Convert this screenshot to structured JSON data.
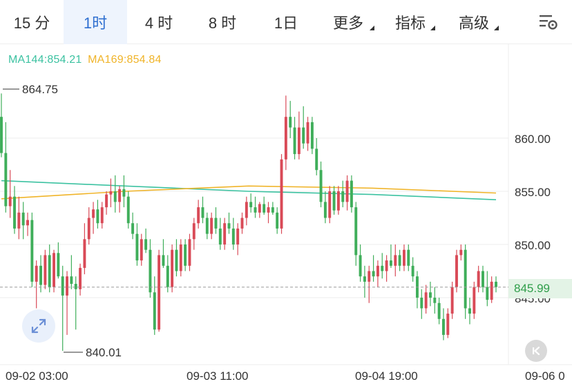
{
  "tabs": [
    {
      "label": "15 分",
      "active": false,
      "dropdown": false
    },
    {
      "label": "1时",
      "active": true,
      "dropdown": false
    },
    {
      "label": "4 时",
      "active": false,
      "dropdown": false
    },
    {
      "label": "8 时",
      "active": false,
      "dropdown": false
    },
    {
      "label": "1日",
      "active": false,
      "dropdown": false
    },
    {
      "label": "更多",
      "active": false,
      "dropdown": true
    },
    {
      "label": "指标",
      "active": false,
      "dropdown": true
    },
    {
      "label": "高级",
      "active": false,
      "dropdown": true
    }
  ],
  "settings_icon": "chart-settings-icon",
  "ma_legend": {
    "ma144": {
      "label": "MA144:854.21",
      "color": "#3cc2a1"
    },
    "ma169": {
      "label": "MA169:854.84",
      "color": "#f0b429"
    }
  },
  "current_price": {
    "label": "845.99",
    "value": 845.99
  },
  "chart_data": {
    "type": "candlestick",
    "y_axis_labels": [
      "860.00",
      "855.00",
      "850.00",
      "845.00"
    ],
    "y_ticks": [
      860,
      855,
      850,
      845
    ],
    "x_axis_labels": [
      "09-02 03:00",
      "09-03 11:00",
      "09-04 19:00",
      "09-06 0"
    ],
    "high_label": "864.75",
    "low_label": "840.01",
    "colors": {
      "up": "#d94a57",
      "down": "#3fae5a",
      "ma144": "#3cc2a1",
      "ma169": "#f0b429"
    },
    "candles": [
      [
        862.0,
        864.2,
        858.2,
        858.6
      ],
      [
        858.6,
        861.5,
        853.0,
        853.6
      ],
      [
        853.6,
        857.0,
        852.5,
        854.5
      ],
      [
        854.5,
        855.5,
        851.0,
        851.5
      ],
      [
        851.5,
        854.5,
        850.5,
        853.0
      ],
      [
        853.0,
        854.0,
        850.5,
        851.8
      ],
      [
        851.8,
        853.0,
        850.8,
        852.3
      ],
      [
        852.3,
        853.0,
        846.0,
        846.5
      ],
      [
        846.5,
        848.5,
        844.0,
        848.0
      ],
      [
        848.0,
        849.0,
        845.5,
        846.2
      ],
      [
        846.2,
        849.5,
        845.8,
        849.0
      ],
      [
        849.0,
        850.0,
        845.5,
        846.0
      ],
      [
        846.0,
        849.5,
        845.5,
        849.2
      ],
      [
        849.2,
        850.2,
        846.8,
        847.0
      ],
      [
        847.0,
        848.0,
        840.0,
        845.2
      ],
      [
        845.2,
        847.5,
        841.5,
        847.0
      ],
      [
        847.0,
        849.0,
        845.8,
        846.3
      ],
      [
        846.3,
        847.0,
        842.0,
        845.8
      ],
      [
        845.8,
        848.2,
        845.2,
        847.8
      ],
      [
        847.8,
        852.0,
        847.2,
        850.5
      ],
      [
        850.5,
        853.5,
        850.0,
        852.5
      ],
      [
        852.5,
        854.0,
        851.0,
        853.3
      ],
      [
        853.3,
        854.2,
        851.5,
        852.0
      ],
      [
        852.0,
        854.0,
        851.5,
        853.5
      ],
      [
        853.5,
        855.0,
        852.8,
        854.7
      ],
      [
        854.7,
        856.2,
        853.5,
        855.0
      ],
      [
        855.0,
        856.5,
        853.0,
        854.0
      ],
      [
        854.0,
        855.5,
        853.0,
        855.2
      ],
      [
        855.2,
        856.5,
        853.5,
        854.5
      ],
      [
        854.5,
        855.0,
        851.5,
        852.0
      ],
      [
        852.0,
        853.0,
        850.5,
        851.0
      ],
      [
        851.0,
        852.0,
        848.0,
        848.5
      ],
      [
        848.5,
        851.0,
        848.0,
        850.5
      ],
      [
        850.5,
        851.5,
        849.2,
        849.5
      ],
      [
        849.5,
        850.5,
        845.0,
        845.5
      ],
      [
        845.5,
        847.0,
        841.5,
        842.0
      ],
      [
        842.0,
        849.5,
        841.8,
        849.0
      ],
      [
        849.0,
        850.5,
        847.8,
        848.0
      ],
      [
        848.0,
        849.0,
        845.5,
        846.0
      ],
      [
        846.0,
        850.0,
        845.5,
        849.5
      ],
      [
        849.5,
        850.5,
        847.0,
        847.5
      ],
      [
        847.5,
        850.5,
        847.0,
        850.0
      ],
      [
        850.0,
        850.5,
        847.5,
        848.0
      ],
      [
        848.0,
        851.0,
        847.5,
        850.5
      ],
      [
        850.5,
        852.5,
        849.5,
        852.0
      ],
      [
        852.0,
        854.2,
        851.5,
        853.5
      ],
      [
        853.5,
        854.5,
        852.0,
        852.5
      ],
      [
        852.5,
        853.0,
        850.5,
        851.0
      ],
      [
        851.0,
        853.0,
        850.5,
        852.5
      ],
      [
        852.5,
        853.5,
        851.0,
        851.5
      ],
      [
        851.5,
        852.5,
        849.5,
        850.0
      ],
      [
        850.0,
        852.5,
        849.5,
        852.0
      ],
      [
        852.0,
        853.0,
        851.0,
        851.5
      ],
      [
        851.5,
        852.5,
        849.5,
        850.0
      ],
      [
        850.0,
        852.0,
        849.0,
        851.5
      ],
      [
        851.5,
        853.0,
        851.0,
        852.5
      ],
      [
        852.5,
        854.5,
        851.8,
        854.0
      ],
      [
        854.0,
        854.8,
        853.0,
        853.5
      ],
      [
        853.5,
        854.5,
        852.5,
        853.0
      ],
      [
        853.0,
        854.0,
        852.5,
        853.8
      ],
      [
        853.8,
        854.5,
        852.8,
        853.0
      ],
      [
        853.0,
        854.0,
        852.0,
        853.5
      ],
      [
        853.5,
        854.0,
        852.8,
        853.0
      ],
      [
        853.0,
        853.5,
        851.0,
        851.5
      ],
      [
        851.5,
        858.5,
        851.0,
        858.0
      ],
      [
        858.0,
        864.0,
        857.0,
        862.0
      ],
      [
        862.0,
        863.5,
        860.0,
        861.0
      ],
      [
        861.0,
        862.0,
        858.0,
        858.5
      ],
      [
        858.5,
        862.5,
        858.0,
        861.0
      ],
      [
        861.0,
        863.0,
        859.0,
        859.5
      ],
      [
        859.5,
        862.0,
        858.8,
        861.5
      ],
      [
        861.5,
        862.0,
        858.5,
        859.0
      ],
      [
        859.0,
        860.0,
        856.5,
        857.0
      ],
      [
        857.0,
        857.8,
        853.5,
        854.0
      ],
      [
        854.0,
        855.0,
        852.0,
        852.5
      ],
      [
        852.5,
        855.5,
        852.0,
        855.0
      ],
      [
        855.0,
        855.5,
        852.8,
        853.2
      ],
      [
        853.2,
        855.5,
        852.8,
        855.0
      ],
      [
        855.0,
        856.0,
        853.5,
        854.0
      ],
      [
        854.0,
        856.5,
        853.2,
        856.0
      ],
      [
        856.0,
        856.5,
        853.0,
        853.5
      ],
      [
        853.5,
        854.0,
        848.0,
        849.0
      ],
      [
        849.0,
        850.0,
        846.5,
        847.0
      ],
      [
        847.0,
        848.0,
        845.0,
        846.5
      ],
      [
        846.5,
        848.0,
        844.5,
        847.5
      ],
      [
        847.5,
        849.0,
        846.5,
        847.0
      ],
      [
        847.0,
        848.5,
        846.0,
        848.0
      ],
      [
        848.0,
        849.2,
        846.8,
        847.5
      ],
      [
        847.5,
        849.0,
        846.5,
        848.5
      ],
      [
        848.5,
        850.0,
        847.8,
        848.0
      ],
      [
        848.0,
        850.0,
        847.0,
        849.0
      ],
      [
        849.0,
        849.5,
        847.5,
        848.0
      ],
      [
        848.0,
        850.0,
        847.5,
        849.5
      ],
      [
        849.5,
        850.0,
        847.5,
        848.0
      ],
      [
        848.0,
        848.8,
        846.5,
        847.0
      ],
      [
        847.0,
        847.5,
        844.0,
        845.0
      ],
      [
        845.0,
        845.8,
        843.0,
        844.0
      ],
      [
        844.0,
        846.2,
        843.5,
        845.5
      ],
      [
        845.5,
        846.5,
        844.2,
        845.0
      ],
      [
        845.0,
        846.0,
        843.5,
        844.5
      ],
      [
        844.5,
        845.0,
        842.5,
        843.0
      ],
      [
        843.0,
        844.0,
        841.0,
        841.5
      ],
      [
        841.5,
        844.0,
        841.2,
        843.5
      ],
      [
        843.5,
        846.5,
        843.0,
        846.0
      ],
      [
        846.0,
        849.5,
        845.5,
        849.0
      ],
      [
        849.0,
        850.0,
        848.5,
        849.5
      ],
      [
        849.5,
        850.0,
        843.0,
        844.0
      ],
      [
        844.0,
        845.0,
        842.5,
        843.5
      ],
      [
        843.5,
        846.5,
        843.0,
        846.0
      ],
      [
        846.0,
        848.0,
        845.5,
        847.5
      ],
      [
        847.5,
        848.0,
        845.5,
        846.0
      ],
      [
        846.0,
        847.5,
        844.2,
        844.8
      ],
      [
        844.8,
        847.0,
        844.5,
        846.5
      ],
      [
        846.5,
        847.0,
        845.5,
        846.0
      ]
    ],
    "ma144": [
      856.0,
      855.5,
      855.0,
      854.7,
      854.21
    ],
    "ma169": [
      854.3,
      855.0,
      855.5,
      855.3,
      854.84
    ]
  }
}
